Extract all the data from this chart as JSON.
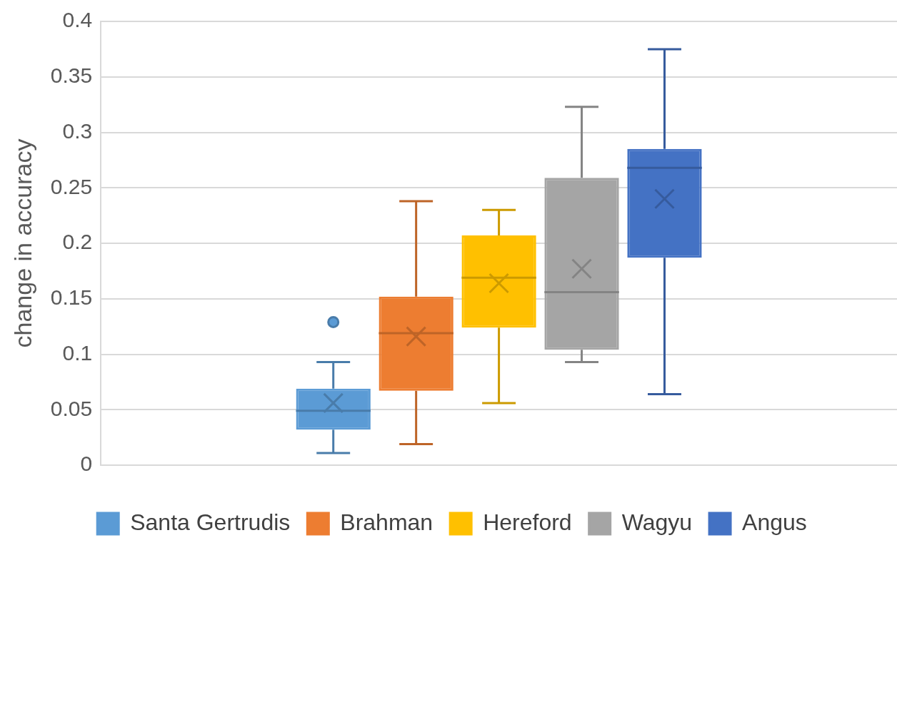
{
  "chart_data": {
    "type": "box",
    "ylabel": "change in accuracy",
    "categories": [
      null
    ],
    "series": [
      {
        "name": "Santa Gertrudis",
        "color": "#5b9bd5",
        "boxes": [
          {
            "low": 0.011,
            "q1": 0.032,
            "median": 0.049,
            "q3": 0.069,
            "high": 0.093,
            "mean": 0.056,
            "outliers": [
              0.129
            ]
          }
        ]
      },
      {
        "name": "Brahman",
        "color": "#ed7d31",
        "boxes": [
          {
            "low": 0.019,
            "q1": 0.067,
            "median": 0.119,
            "q3": 0.152,
            "high": 0.238,
            "mean": 0.116
          }
        ]
      },
      {
        "name": "Hereford",
        "color": "#ffc000",
        "boxes": [
          {
            "low": 0.056,
            "q1": 0.124,
            "median": 0.169,
            "q3": 0.207,
            "high": 0.23,
            "mean": 0.164
          }
        ]
      },
      {
        "name": "Wagyu",
        "color": "#a5a5a5",
        "boxes": [
          {
            "low": 0.093,
            "q1": 0.104,
            "median": 0.156,
            "q3": 0.259,
            "high": 0.323,
            "mean": 0.177
          }
        ]
      },
      {
        "name": "Angus",
        "color": "#4472c4",
        "boxes": [
          {
            "low": 0.064,
            "q1": 0.187,
            "median": 0.268,
            "q3": 0.285,
            "high": 0.375,
            "mean": 0.24
          }
        ]
      }
    ],
    "ylim": [
      0,
      0.4
    ],
    "yticks": [
      0,
      0.05,
      0.1,
      0.15,
      0.2,
      0.25,
      0.3,
      0.35,
      0.4
    ],
    "grid": "y",
    "legend": "bottom"
  }
}
